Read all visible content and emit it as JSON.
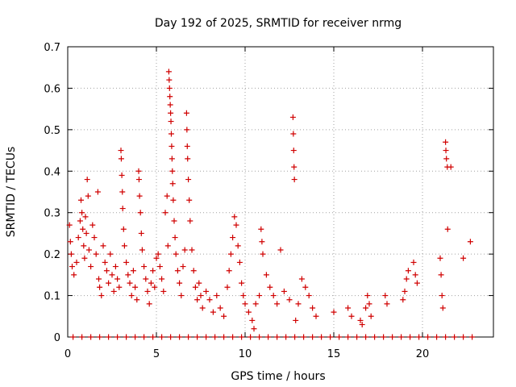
{
  "chart_data": {
    "type": "scatter",
    "title": "Day 192 of 2025, SRMTID for receiver nrmg",
    "xlabel": "GPS time / hours",
    "ylabel": "SRMTID / TECUs",
    "xlim": [
      0,
      24
    ],
    "ylim": [
      0,
      0.7
    ],
    "xticks": [
      "0",
      "5",
      "10",
      "15",
      "20"
    ],
    "yticks": [
      "0",
      "0.1",
      "0.2",
      "0.3",
      "0.4",
      "0.5",
      "0.6",
      "0.7"
    ],
    "grid": true,
    "marker": "+",
    "series": [
      {
        "name": "SRMTID",
        "color": "#d00000",
        "points": [
          [
            0.1,
            0.27
          ],
          [
            0.15,
            0.23
          ],
          [
            0.2,
            0.2
          ],
          [
            0.25,
            0.17
          ],
          [
            0.35,
            0.15
          ],
          [
            0.5,
            0.18
          ],
          [
            0.6,
            0.24
          ],
          [
            0.7,
            0.28
          ],
          [
            0.75,
            0.33
          ],
          [
            0.8,
            0.3
          ],
          [
            0.85,
            0.26
          ],
          [
            0.9,
            0.22
          ],
          [
            0.95,
            0.19
          ],
          [
            1.0,
            0.29
          ],
          [
            1.05,
            0.25
          ],
          [
            1.1,
            0.38
          ],
          [
            1.15,
            0.34
          ],
          [
            1.2,
            0.21
          ],
          [
            1.3,
            0.17
          ],
          [
            1.4,
            0.27
          ],
          [
            1.5,
            0.24
          ],
          [
            1.6,
            0.2
          ],
          [
            1.7,
            0.35
          ],
          [
            1.75,
            0.14
          ],
          [
            1.8,
            0.12
          ],
          [
            1.9,
            0.1
          ],
          [
            2.0,
            0.22
          ],
          [
            2.1,
            0.18
          ],
          [
            2.2,
            0.16
          ],
          [
            2.3,
            0.13
          ],
          [
            2.4,
            0.2
          ],
          [
            2.5,
            0.15
          ],
          [
            2.6,
            0.11
          ],
          [
            2.7,
            0.17
          ],
          [
            2.8,
            0.14
          ],
          [
            2.9,
            0.12
          ],
          [
            3.0,
            0.45
          ],
          [
            3.02,
            0.43
          ],
          [
            3.05,
            0.39
          ],
          [
            3.08,
            0.35
          ],
          [
            3.1,
            0.31
          ],
          [
            3.15,
            0.26
          ],
          [
            3.2,
            0.22
          ],
          [
            3.3,
            0.18
          ],
          [
            3.4,
            0.15
          ],
          [
            3.5,
            0.13
          ],
          [
            3.6,
            0.1
          ],
          [
            3.7,
            0.16
          ],
          [
            3.8,
            0.12
          ],
          [
            3.9,
            0.09
          ],
          [
            4.0,
            0.4
          ],
          [
            4.02,
            0.38
          ],
          [
            4.05,
            0.34
          ],
          [
            4.1,
            0.3
          ],
          [
            4.15,
            0.25
          ],
          [
            4.2,
            0.21
          ],
          [
            4.3,
            0.17
          ],
          [
            4.4,
            0.14
          ],
          [
            4.5,
            0.11
          ],
          [
            4.6,
            0.08
          ],
          [
            4.7,
            0.13
          ],
          [
            4.8,
            0.16
          ],
          [
            4.9,
            0.12
          ],
          [
            5.0,
            0.19
          ],
          [
            5.1,
            0.2
          ],
          [
            5.2,
            0.17
          ],
          [
            5.3,
            0.14
          ],
          [
            5.4,
            0.11
          ],
          [
            5.5,
            0.3
          ],
          [
            5.6,
            0.34
          ],
          [
            5.65,
            0.22
          ],
          [
            5.7,
            0.64
          ],
          [
            5.72,
            0.62
          ],
          [
            5.74,
            0.6
          ],
          [
            5.76,
            0.58
          ],
          [
            5.78,
            0.56
          ],
          [
            5.8,
            0.54
          ],
          [
            5.82,
            0.52
          ],
          [
            5.84,
            0.49
          ],
          [
            5.86,
            0.46
          ],
          [
            5.88,
            0.43
          ],
          [
            5.9,
            0.4
          ],
          [
            5.92,
            0.37
          ],
          [
            5.95,
            0.33
          ],
          [
            6.0,
            0.28
          ],
          [
            6.05,
            0.24
          ],
          [
            6.1,
            0.2
          ],
          [
            6.2,
            0.16
          ],
          [
            6.3,
            0.13
          ],
          [
            6.4,
            0.1
          ],
          [
            6.5,
            0.17
          ],
          [
            6.6,
            0.21
          ],
          [
            6.7,
            0.54
          ],
          [
            6.72,
            0.5
          ],
          [
            6.74,
            0.46
          ],
          [
            6.76,
            0.43
          ],
          [
            6.8,
            0.38
          ],
          [
            6.85,
            0.33
          ],
          [
            6.9,
            0.28
          ],
          [
            7.0,
            0.21
          ],
          [
            7.1,
            0.16
          ],
          [
            7.2,
            0.12
          ],
          [
            7.3,
            0.09
          ],
          [
            7.4,
            0.13
          ],
          [
            7.5,
            0.1
          ],
          [
            7.6,
            0.07
          ],
          [
            7.8,
            0.11
          ],
          [
            8.0,
            0.09
          ],
          [
            8.2,
            0.06
          ],
          [
            8.4,
            0.1
          ],
          [
            8.6,
            0.07
          ],
          [
            8.8,
            0.05
          ],
          [
            9.0,
            0.12
          ],
          [
            9.1,
            0.16
          ],
          [
            9.2,
            0.2
          ],
          [
            9.3,
            0.24
          ],
          [
            9.4,
            0.29
          ],
          [
            9.5,
            0.27
          ],
          [
            9.6,
            0.22
          ],
          [
            9.7,
            0.18
          ],
          [
            9.8,
            0.13
          ],
          [
            9.9,
            0.1
          ],
          [
            10.0,
            0.08
          ],
          [
            10.2,
            0.06
          ],
          [
            10.4,
            0.04
          ],
          [
            10.5,
            0.02
          ],
          [
            10.6,
            0.08
          ],
          [
            10.8,
            0.1
          ],
          [
            10.9,
            0.26
          ],
          [
            10.95,
            0.23
          ],
          [
            11.0,
            0.2
          ],
          [
            11.2,
            0.15
          ],
          [
            11.4,
            0.12
          ],
          [
            11.6,
            0.1
          ],
          [
            11.8,
            0.08
          ],
          [
            12.0,
            0.21
          ],
          [
            12.2,
            0.11
          ],
          [
            12.5,
            0.09
          ],
          [
            12.7,
            0.53
          ],
          [
            12.72,
            0.49
          ],
          [
            12.74,
            0.45
          ],
          [
            12.76,
            0.41
          ],
          [
            12.78,
            0.38
          ],
          [
            12.85,
            0.04
          ],
          [
            13.0,
            0.08
          ],
          [
            13.2,
            0.14
          ],
          [
            13.4,
            0.12
          ],
          [
            13.6,
            0.1
          ],
          [
            13.8,
            0.07
          ],
          [
            14.0,
            0.05
          ],
          [
            15.0,
            0.06
          ],
          [
            15.8,
            0.07
          ],
          [
            16.0,
            0.05
          ],
          [
            16.5,
            0.04
          ],
          [
            16.6,
            0.03
          ],
          [
            16.8,
            0.07
          ],
          [
            16.9,
            0.1
          ],
          [
            17.0,
            0.08
          ],
          [
            17.1,
            0.05
          ],
          [
            17.9,
            0.1
          ],
          [
            18.0,
            0.08
          ],
          [
            18.9,
            0.09
          ],
          [
            19.0,
            0.11
          ],
          [
            19.1,
            0.14
          ],
          [
            19.2,
            0.16
          ],
          [
            19.5,
            0.18
          ],
          [
            19.6,
            0.15
          ],
          [
            19.7,
            0.13
          ],
          [
            21.0,
            0.19
          ],
          [
            21.05,
            0.15
          ],
          [
            21.1,
            0.1
          ],
          [
            21.15,
            0.07
          ],
          [
            21.3,
            0.47
          ],
          [
            21.32,
            0.45
          ],
          [
            21.35,
            0.43
          ],
          [
            21.4,
            0.41
          ],
          [
            21.42,
            0.26
          ],
          [
            21.6,
            0.41
          ],
          [
            22.3,
            0.19
          ],
          [
            22.7,
            0.23
          ],
          [
            0.3,
            0
          ],
          [
            0.8,
            0
          ],
          [
            1.3,
            0
          ],
          [
            1.8,
            0
          ],
          [
            2.3,
            0
          ],
          [
            2.8,
            0
          ],
          [
            3.3,
            0
          ],
          [
            3.8,
            0
          ],
          [
            4.3,
            0
          ],
          [
            4.8,
            0
          ],
          [
            5.3,
            0
          ],
          [
            5.8,
            0
          ],
          [
            6.3,
            0
          ],
          [
            6.8,
            0
          ],
          [
            7.3,
            0
          ],
          [
            7.8,
            0
          ],
          [
            8.3,
            0
          ],
          [
            8.8,
            0
          ],
          [
            9.3,
            0
          ],
          [
            9.8,
            0
          ],
          [
            10.3,
            0
          ],
          [
            10.8,
            0
          ],
          [
            11.3,
            0
          ],
          [
            11.8,
            0
          ],
          [
            12.3,
            0
          ],
          [
            12.8,
            0
          ],
          [
            13.3,
            0
          ],
          [
            13.8,
            0
          ],
          [
            14.3,
            0
          ],
          [
            14.8,
            0
          ],
          [
            15.3,
            0
          ],
          [
            15.8,
            0
          ],
          [
            16.3,
            0
          ],
          [
            16.8,
            0
          ],
          [
            17.3,
            0
          ],
          [
            17.8,
            0
          ],
          [
            18.3,
            0
          ],
          [
            18.8,
            0
          ],
          [
            19.3,
            0
          ],
          [
            19.8,
            0
          ],
          [
            20.3,
            0
          ],
          [
            20.8,
            0
          ],
          [
            21.3,
            0
          ],
          [
            21.8,
            0
          ],
          [
            22.3,
            0
          ],
          [
            22.8,
            0
          ]
        ]
      }
    ]
  }
}
